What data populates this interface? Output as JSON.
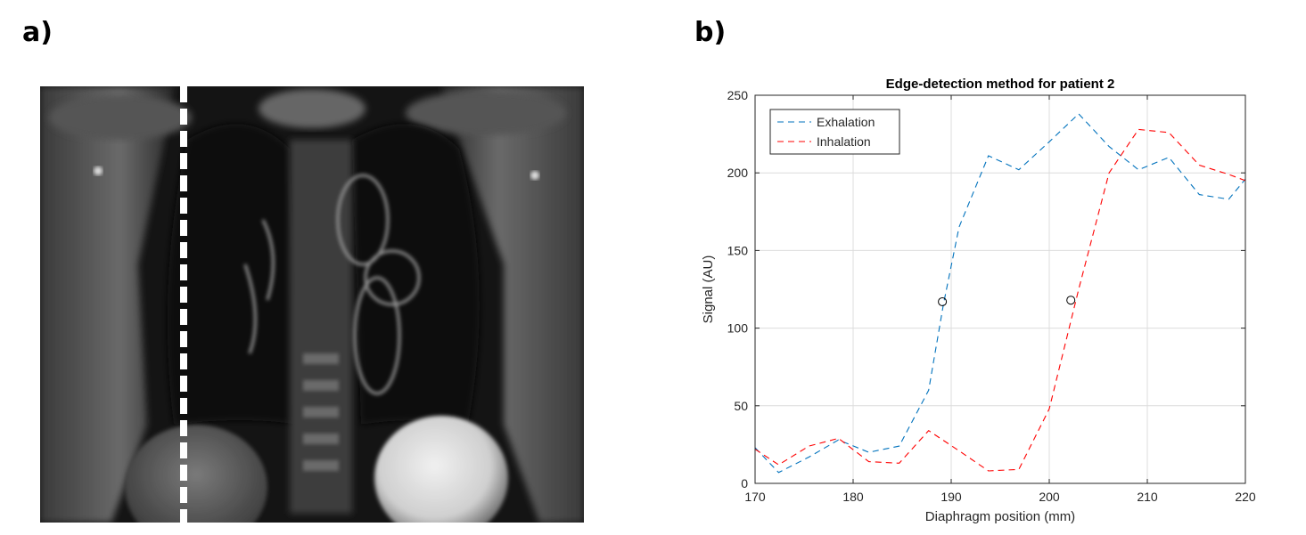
{
  "panels": {
    "a_label": "a)",
    "b_label": "b)"
  },
  "mri": {
    "description_icon": "coronal-mri-image",
    "marker_line_color": "#ffffff"
  },
  "chart_data": {
    "type": "line",
    "title": "Edge-detection method for patient 2",
    "xlabel": "Diaphragm position (mm)",
    "ylabel": "Signal (AU)",
    "xlim": [
      170,
      220
    ],
    "ylim": [
      0,
      250
    ],
    "xticks": [
      170,
      180,
      190,
      200,
      210,
      220
    ],
    "yticks": [
      0,
      50,
      100,
      150,
      200,
      250
    ],
    "grid": true,
    "legend_position": "top-left",
    "series": [
      {
        "name": "Exhalation",
        "color": "#0072BD",
        "line_style": "dashed",
        "x": [
          170,
          172.4,
          175.5,
          178.5,
          181.6,
          184.7,
          187.7,
          189.2,
          190.8,
          193.8,
          196.9,
          200.0,
          203.0,
          206.1,
          209.1,
          212.2,
          215.3,
          218.3,
          220
        ],
        "y": [
          23,
          7,
          17,
          28,
          20,
          24,
          60,
          115,
          165,
          211,
          202,
          220,
          238,
          217,
          202,
          210,
          186,
          183,
          196
        ]
      },
      {
        "name": "Inhalation",
        "color": "#FF0000",
        "line_style": "dashed",
        "x": [
          170,
          172.4,
          175.5,
          178.5,
          181.6,
          184.7,
          187.7,
          190.8,
          193.8,
          196.9,
          200.0,
          203.0,
          206.1,
          209.1,
          212.2,
          215.3,
          218.3,
          220
        ],
        "y": [
          22,
          12,
          24,
          29,
          14,
          13,
          34,
          21,
          8,
          9,
          48,
          125,
          200,
          228,
          226,
          205,
          199,
          195
        ]
      }
    ],
    "markers": [
      {
        "x": 189.1,
        "y": 117,
        "shape": "circle"
      },
      {
        "x": 202.2,
        "y": 118,
        "shape": "circle"
      }
    ]
  }
}
